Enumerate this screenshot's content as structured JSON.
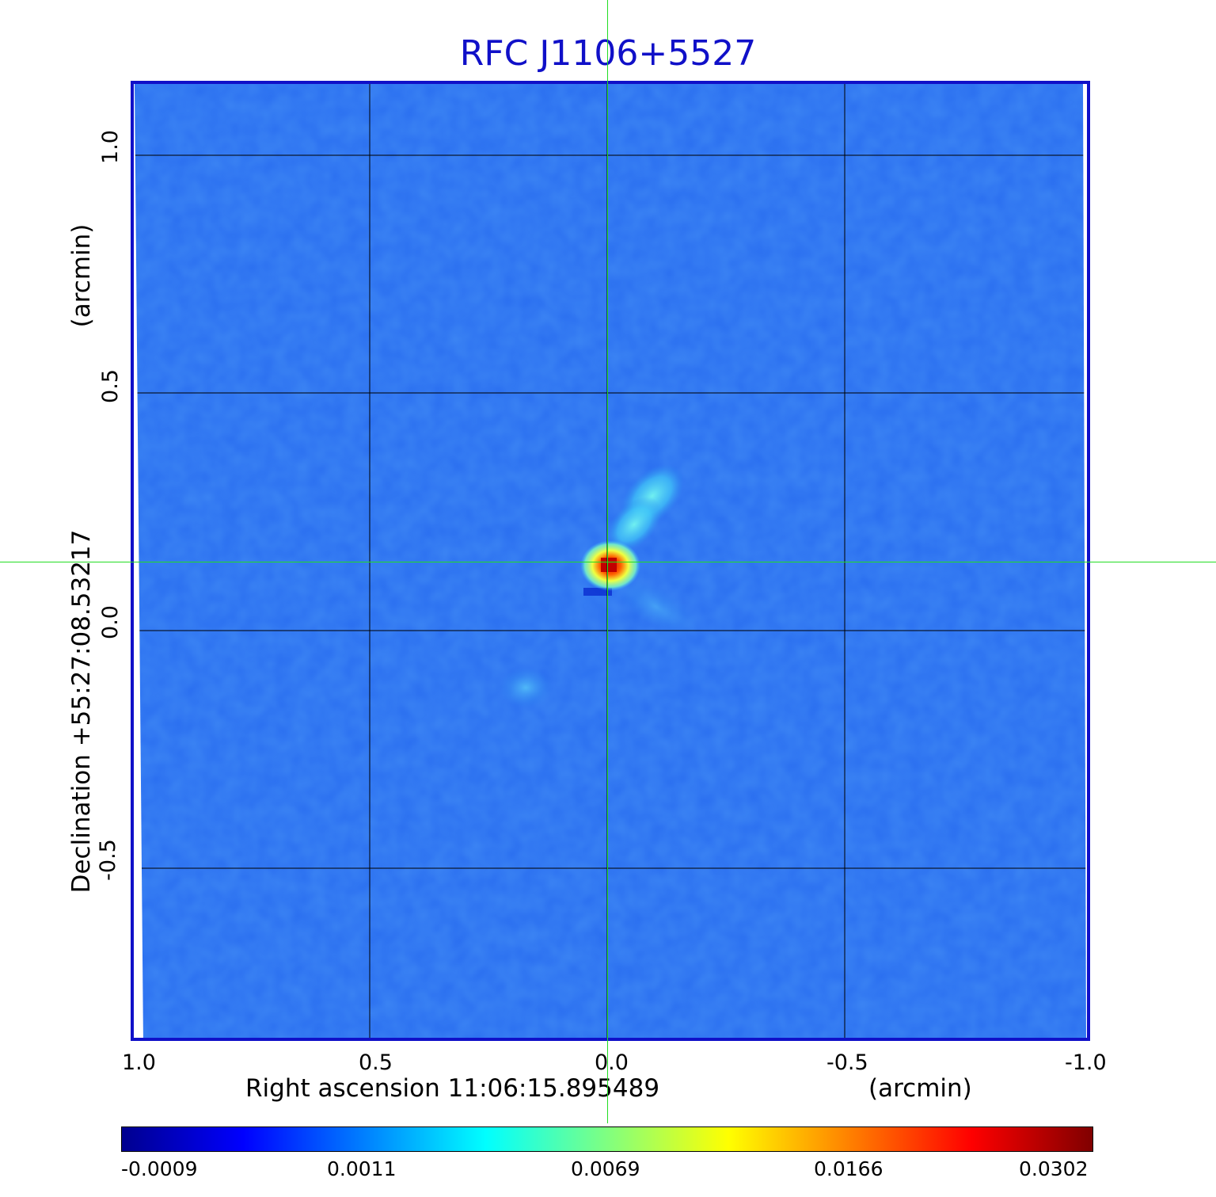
{
  "title": "RFC J1106+5527",
  "axes": {
    "x_label": "Right ascension  11:06:15.895489",
    "x_unit": "(arcmin)",
    "y_label": "Declination  +55:27:08.53217",
    "y_unit": "(arcmin)",
    "x_ticks": [
      "1.0",
      "0.5",
      "0.0",
      "-0.5",
      "-1.0"
    ],
    "y_ticks": [
      "1.0",
      "0.5",
      "0.0",
      "-0.5"
    ]
  },
  "colorbar": {
    "ticks": [
      "-0.0009",
      "0.0011",
      "0.0069",
      "0.0166",
      "0.0302"
    ],
    "colors": [
      "#00008f",
      "#0000ff",
      "#0080ff",
      "#00ffff",
      "#80ff80",
      "#ffff00",
      "#ff8000",
      "#ff0000",
      "#800000"
    ]
  },
  "colors": {
    "title": "#1010c8",
    "frame": "#1010c8",
    "background_field": "#2a6ef0",
    "crosshair": "#22dd22",
    "grid": "#000000"
  }
}
